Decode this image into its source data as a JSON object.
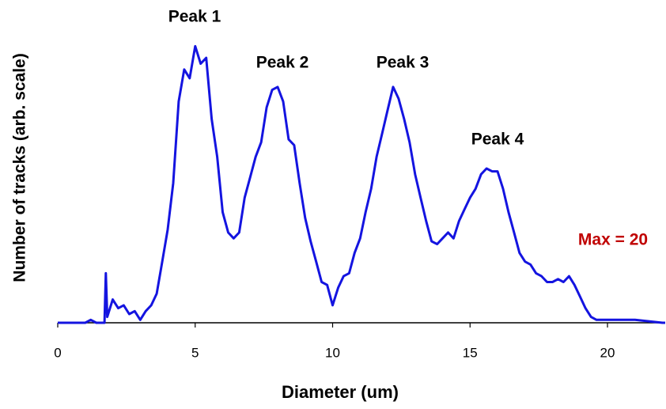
{
  "chart_data": {
    "type": "line",
    "xlabel": "Diameter (um)",
    "ylabel": "Number of tracks (arb. scale)",
    "annotations": [
      "Peak 1",
      "Peak 2",
      "Peak 3",
      "Peak 4",
      "Max = 20"
    ],
    "annotation_colors": [
      "#000000",
      "#000000",
      "#000000",
      "#000000",
      "#c00000"
    ],
    "xlim": [
      0,
      22.1
    ],
    "ylim": [
      0,
      100
    ],
    "xticks": [
      0,
      5,
      10,
      15,
      20
    ],
    "series": [
      {
        "color": "#1414e0",
        "x": [
          0,
          1.0,
          1.2,
          1.4,
          1.7,
          1.75,
          1.8,
          2.0,
          2.2,
          2.4,
          2.6,
          2.8,
          3.0,
          3.2,
          3.4,
          3.6,
          3.8,
          4.0,
          4.2,
          4.4,
          4.6,
          4.8,
          5.0,
          5.2,
          5.4,
          5.6,
          5.8,
          6.0,
          6.2,
          6.4,
          6.6,
          6.8,
          7.0,
          7.2,
          7.4,
          7.6,
          7.8,
          8.0,
          8.2,
          8.4,
          8.6,
          8.8,
          9.0,
          9.2,
          9.4,
          9.6,
          9.8,
          10.0,
          10.2,
          10.4,
          10.6,
          10.8,
          11.0,
          11.2,
          11.4,
          11.6,
          11.8,
          12.0,
          12.2,
          12.4,
          12.6,
          12.8,
          13.0,
          13.2,
          13.4,
          13.6,
          13.8,
          14.0,
          14.2,
          14.4,
          14.6,
          14.8,
          15.0,
          15.2,
          15.4,
          15.6,
          15.8,
          16.0,
          16.2,
          16.4,
          16.6,
          16.8,
          17.0,
          17.2,
          17.4,
          17.6,
          17.8,
          18.0,
          18.2,
          18.4,
          18.6,
          18.8,
          19.0,
          19.2,
          19.4,
          19.6,
          20.0,
          21.0,
          22.0,
          22.1
        ],
        "values": [
          0,
          0,
          1,
          0,
          0,
          17,
          2,
          8,
          5,
          6,
          3,
          4,
          1,
          4,
          6,
          10,
          21,
          32,
          48,
          76,
          87,
          84,
          95,
          89,
          91,
          70,
          57,
          38,
          31,
          29,
          31,
          43,
          50,
          57,
          62,
          74,
          80,
          81,
          76,
          63,
          61,
          48,
          36,
          28,
          21,
          14,
          13,
          6,
          12,
          16,
          17,
          24,
          29,
          38,
          46,
          57,
          65,
          73,
          81,
          77,
          70,
          62,
          51,
          43,
          35,
          28,
          27,
          29,
          31,
          29,
          35,
          39,
          43,
          46,
          51,
          53,
          52,
          52,
          46,
          38,
          31,
          24,
          21,
          20,
          17,
          16,
          14,
          14,
          15,
          14,
          16,
          13,
          9,
          5,
          2,
          1,
          1,
          1,
          0,
          0
        ]
      }
    ]
  }
}
